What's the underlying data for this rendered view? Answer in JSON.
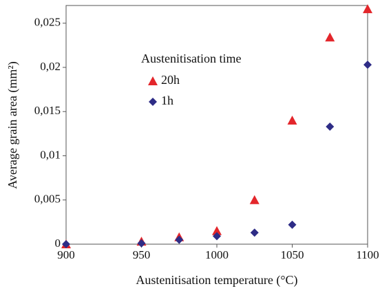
{
  "chart_data": {
    "type": "scatter",
    "x_label": "Austenitisation temperature (°C)",
    "y_label": "Average grain area (mm²)",
    "legend_title": "Austenitisation time",
    "x": [
      900,
      950,
      975,
      1000,
      1025,
      1050,
      1075,
      1100
    ],
    "series": [
      {
        "name": "20h",
        "color": "#e3262b",
        "marker": "triangle",
        "values": [
          0,
          0.0003,
          0.0008,
          0.0015,
          0.005,
          0.014,
          0.0234,
          0.0266
        ]
      },
      {
        "name": "1h",
        "color": "#2e2c86",
        "marker": "diamond",
        "values": [
          0,
          0.0001,
          0.0005,
          0.0009,
          0.0013,
          0.0022,
          0.0133,
          0.0203
        ]
      }
    ],
    "xlim": [
      900,
      1100
    ],
    "xticks": [
      900,
      950,
      1000,
      1050,
      1100
    ],
    "ylim": [
      0,
      0.027
    ],
    "yticks": [
      0,
      {
        "value": 0.005,
        "label": "0,005"
      },
      {
        "value": 0.01,
        "label": "0,01"
      },
      {
        "value": 0.015,
        "label": "0,015"
      },
      {
        "value": 0.02,
        "label": "0,02"
      },
      {
        "value": 0.025,
        "label": "0,025"
      }
    ],
    "grid": false
  }
}
